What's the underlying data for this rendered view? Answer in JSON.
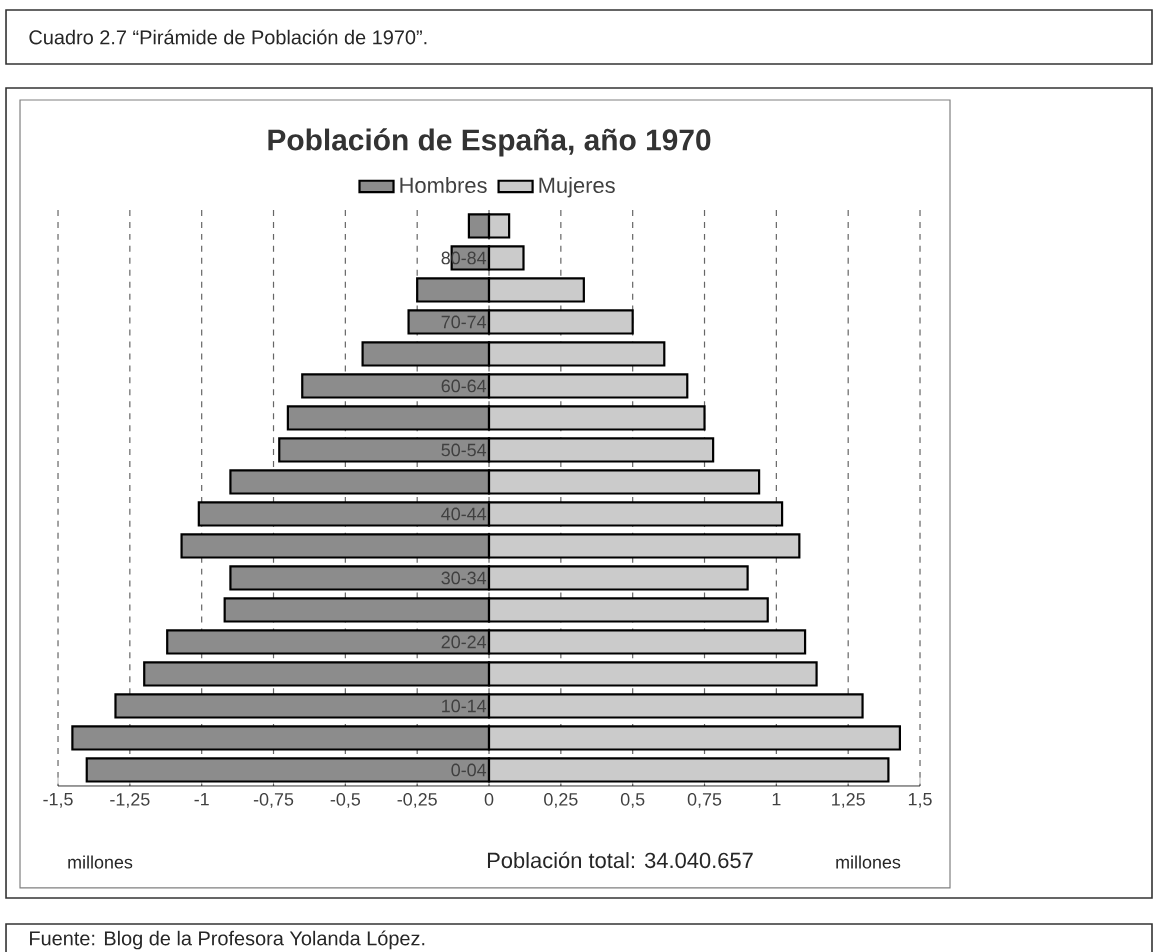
{
  "chart_data": {
    "type": "bar",
    "orientation": "horizontal",
    "title": "Población de España, año 1970",
    "categories": [
      null,
      "80-84",
      null,
      "70-74",
      null,
      "60-64",
      null,
      "50-54",
      null,
      "40-44",
      null,
      "30-34",
      null,
      "20-24",
      null,
      "10-14",
      null,
      "0-04"
    ],
    "series": [
      {
        "name": "Hombres",
        "color": "#8c8c8c",
        "values": [
          -0.07,
          -0.13,
          -0.25,
          -0.28,
          -0.44,
          -0.65,
          -0.7,
          -0.73,
          -0.9,
          -1.01,
          -1.07,
          -0.9,
          -0.92,
          -1.12,
          -1.2,
          -1.3,
          -1.45,
          -1.4
        ]
      },
      {
        "name": "Mujeres",
        "color": "#cbcbcb",
        "values": [
          0.07,
          0.12,
          0.33,
          0.5,
          0.61,
          0.69,
          0.75,
          0.78,
          0.94,
          1.02,
          1.08,
          0.9,
          0.97,
          1.1,
          1.14,
          1.3,
          1.43,
          1.39
        ]
      }
    ],
    "xlim": [
      -1.5,
      1.5
    ],
    "xticks": [
      {
        "value": -1.5,
        "label": "-1,5"
      },
      {
        "value": -1.25,
        "label": "-1,25"
      },
      -1,
      {
        "value": -0.75,
        "label": "-0,75"
      },
      {
        "value": -0.5,
        "label": "-0,5"
      },
      {
        "value": -0.25,
        "label": "-0,25"
      },
      0,
      {
        "value": 0.25,
        "label": "0,25"
      },
      {
        "value": 0.5,
        "label": "0,5"
      },
      {
        "value": 0.75,
        "label": "0,75"
      },
      1,
      {
        "value": 1.25,
        "label": "1,25"
      },
      {
        "value": 1.5,
        "label": "1,5"
      }
    ],
    "stacked": true,
    "grid": "x",
    "legend": "top",
    "annotations": [
      "Población total: 34.040.657",
      "millones",
      "millones",
      "Cuadro 2.7 “Pirámide de Población de 1970”.",
      "Fuente: Blog de la Profesora Yolanda López."
    ]
  }
}
